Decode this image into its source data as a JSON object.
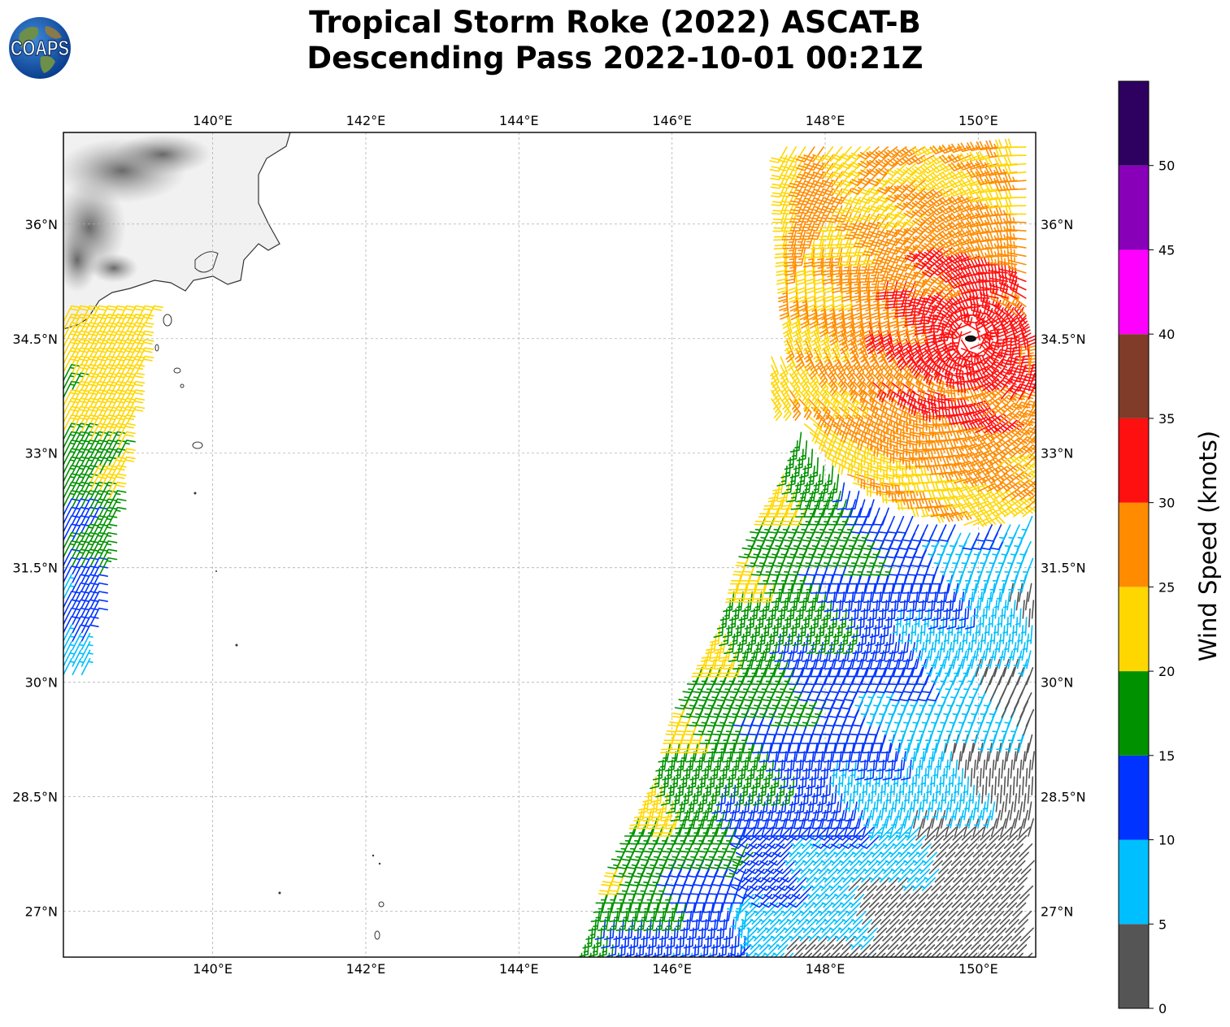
{
  "header": {
    "title_line1": "Tropical Storm Roke (2022) ASCAT-B",
    "title_line2": "Descending Pass 2022-10-01 00:21Z",
    "logo_text": "COAPS"
  },
  "map": {
    "lon_range": [
      138.05,
      150.75
    ],
    "lat_range": [
      26.4,
      37.2
    ],
    "lon_ticks": [
      "140°E",
      "142°E",
      "144°E",
      "146°E",
      "148°E",
      "150°E"
    ],
    "lat_ticks": [
      "27°N",
      "28.5°N",
      "30°N",
      "31.5°N",
      "33°N",
      "34.5°N",
      "36°N"
    ],
    "gridlines": true,
    "storm_center": {
      "lon": 149.9,
      "lat": 34.5
    },
    "wind_field_regions": [
      {
        "name": "west swath",
        "lon_range": [
          138.05,
          139.3
        ],
        "lat_range": [
          30.1,
          34.8
        ],
        "speed_knots": [
          5,
          25
        ]
      },
      {
        "name": "east swath",
        "lon_range": [
          144.8,
          150.75
        ],
        "lat_range": [
          26.4,
          37.1
        ],
        "speed_knots": [
          5,
          35
        ]
      }
    ]
  },
  "colorbar": {
    "label": "Wind Speed (knots)",
    "ticks": [
      "0",
      "5",
      "10",
      "15",
      "20",
      "25",
      "30",
      "35",
      "40",
      "45",
      "50"
    ],
    "bins": [
      {
        "range": [
          0,
          5
        ],
        "color": "#555555"
      },
      {
        "range": [
          5,
          10
        ],
        "color": "#00bfff"
      },
      {
        "range": [
          10,
          15
        ],
        "color": "#0033ff"
      },
      {
        "range": [
          15,
          20
        ],
        "color": "#009100"
      },
      {
        "range": [
          20,
          25
        ],
        "color": "#ffd700"
      },
      {
        "range": [
          25,
          30
        ],
        "color": "#ff8c00"
      },
      {
        "range": [
          30,
          35
        ],
        "color": "#ff1010"
      },
      {
        "range": [
          35,
          40
        ],
        "color": "#803c28"
      },
      {
        "range": [
          40,
          45
        ],
        "color": "#ff00ff"
      },
      {
        "range": [
          45,
          50
        ],
        "color": "#8800b8"
      },
      {
        "range": [
          50,
          55
        ],
        "color": "#2e0060"
      }
    ]
  }
}
